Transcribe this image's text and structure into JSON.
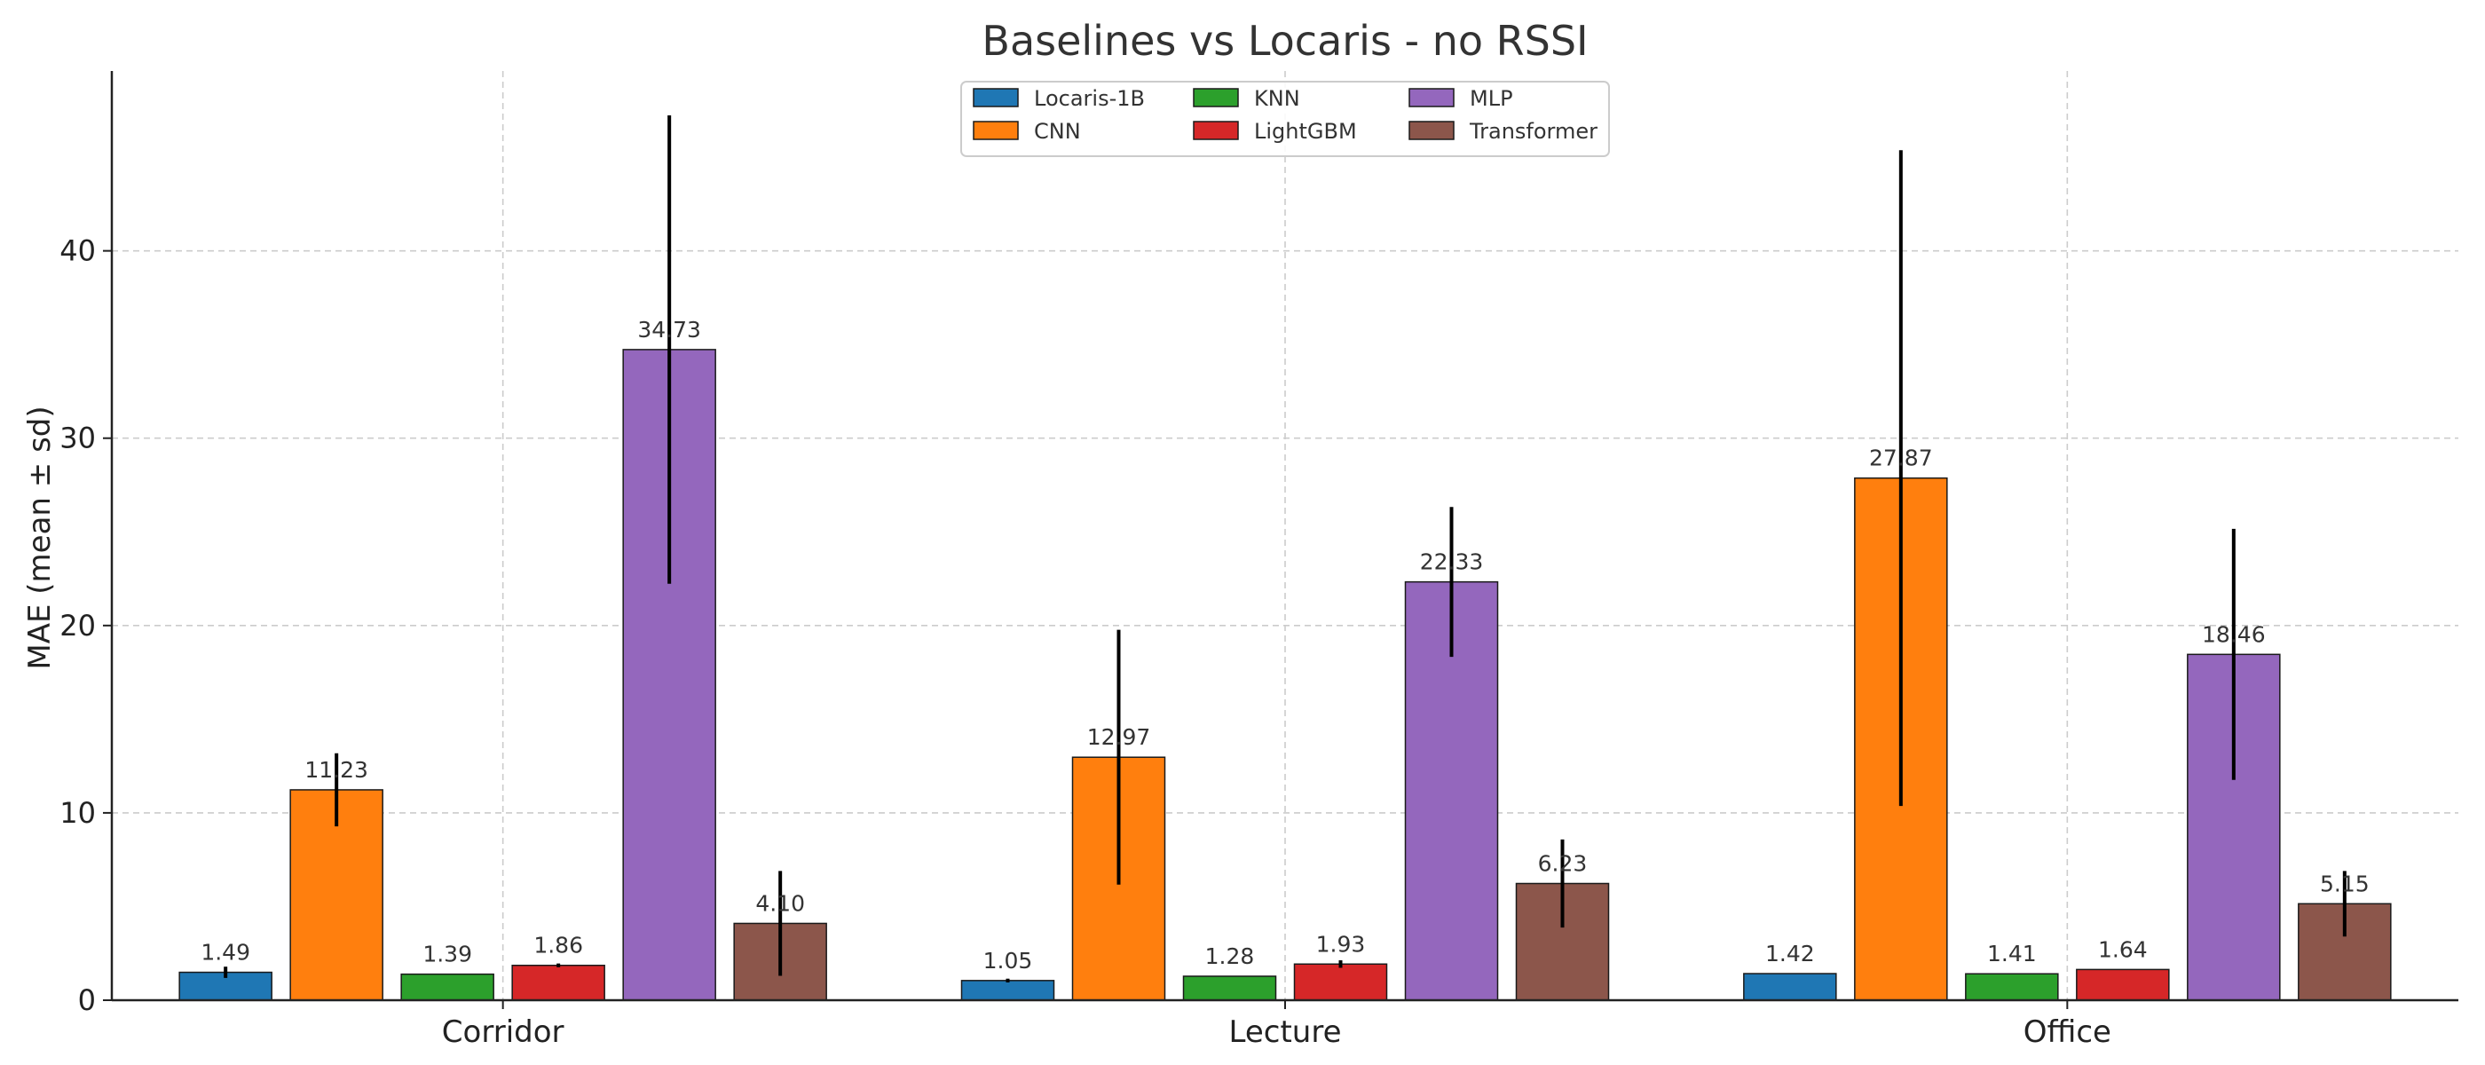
{
  "chart_data": {
    "type": "bar",
    "title": "Baselines vs Locaris - no RSSI",
    "xlabel": "",
    "ylabel": "MAE (mean ± sd)",
    "ylim": [
      0,
      49.6
    ],
    "yticks": [
      0,
      10,
      20,
      30,
      40
    ],
    "grid": true,
    "legend_position": "top-center",
    "categories": [
      "Corridor",
      "Lecture",
      "Office"
    ],
    "series": [
      {
        "name": "Locaris-1B",
        "color": "#1f77b4",
        "values": [
          1.49,
          1.05,
          1.42
        ],
        "sd": [
          0.3,
          0.1,
          0.0
        ],
        "labels": [
          "1.49",
          "1.05",
          "1.42"
        ]
      },
      {
        "name": "CNN",
        "color": "#ff7f0e",
        "values": [
          11.23,
          12.97,
          27.87
        ],
        "sd": [
          1.95,
          6.8,
          17.5
        ],
        "labels": [
          "11.23",
          "12.97",
          "27.87"
        ]
      },
      {
        "name": "KNN",
        "color": "#2ca02c",
        "values": [
          1.39,
          1.28,
          1.41
        ],
        "sd": [
          0.0,
          0.0,
          0.0
        ],
        "labels": [
          "1.39",
          "1.28",
          "1.41"
        ]
      },
      {
        "name": "LightGBM",
        "color": "#d62728",
        "values": [
          1.86,
          1.93,
          1.64
        ],
        "sd": [
          0.1,
          0.2,
          0.0
        ],
        "labels": [
          "1.86",
          "1.93",
          "1.64"
        ]
      },
      {
        "name": "MLP",
        "color": "#9467bd",
        "values": [
          34.73,
          22.33,
          18.46
        ],
        "sd": [
          12.5,
          4.0,
          6.7
        ],
        "labels": [
          "34.73",
          "22.33",
          "18.46"
        ]
      },
      {
        "name": "Transformer",
        "color": "#8c564b",
        "values": [
          4.1,
          6.23,
          5.15
        ],
        "sd": [
          2.8,
          2.35,
          1.75
        ],
        "labels": [
          "4.10",
          "6.23",
          "5.15"
        ]
      }
    ]
  }
}
